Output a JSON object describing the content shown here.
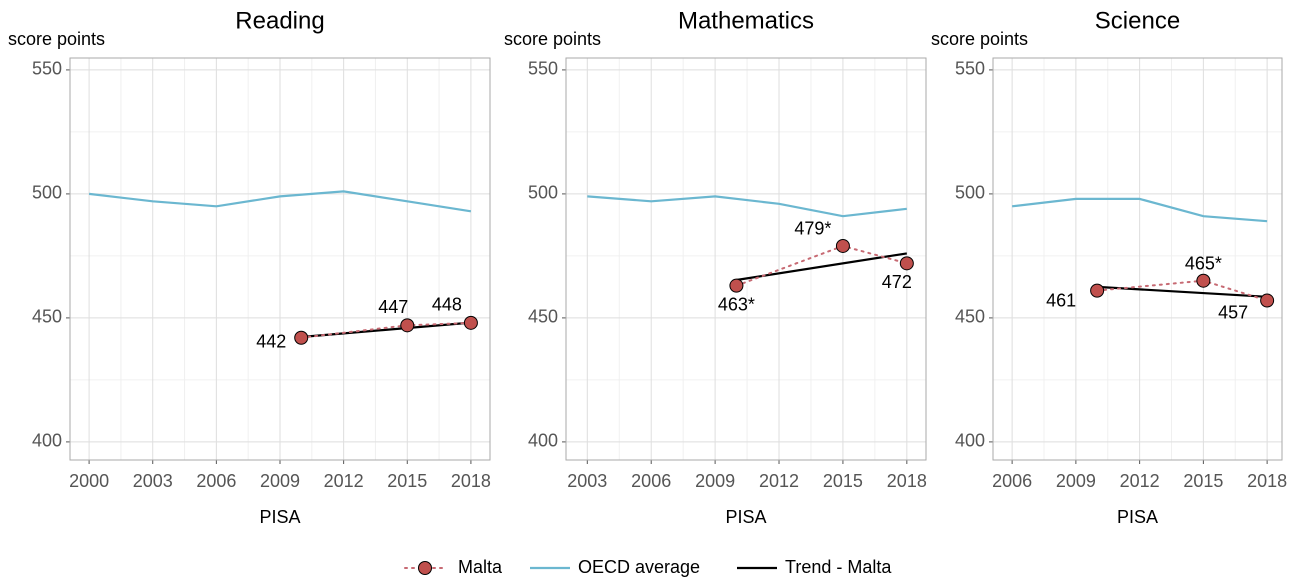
{
  "chart_data": [
    {
      "type": "line",
      "title": "Reading",
      "ylabel": "score points",
      "xlabel": "PISA",
      "xlim": [
        1999.1,
        2018.9
      ],
      "xticks": [
        2000,
        2003,
        2006,
        2009,
        2012,
        2015,
        2018
      ],
      "ylim": [
        392.7,
        554.8
      ],
      "yticks": [
        400,
        450,
        500,
        550
      ],
      "grid": true,
      "series": [
        {
          "name": "Malta",
          "color": "#c0504d",
          "x": [
            2010,
            2015,
            2018
          ],
          "values": [
            442,
            447,
            448
          ]
        },
        {
          "name": "OECD average",
          "color": "#6bb7d0",
          "x": [
            2000,
            2003,
            2006,
            2009,
            2012,
            2015,
            2018
          ],
          "values": [
            500,
            497,
            495,
            499,
            501,
            497,
            493
          ]
        },
        {
          "name": "Trend - Malta",
          "color": "#000000",
          "x": [
            2010,
            2018
          ],
          "values": [
            442.3,
            448.1
          ]
        }
      ]
    },
    {
      "type": "line",
      "title": "Mathematics",
      "ylabel": "score points",
      "xlabel": "PISA",
      "xlim": [
        2002,
        2018.9
      ],
      "xticks": [
        2003,
        2006,
        2009,
        2012,
        2015,
        2018
      ],
      "ylim": [
        392.7,
        554.8
      ],
      "yticks": [
        400,
        450,
        500,
        550
      ],
      "grid": true,
      "series": [
        {
          "name": "Malta",
          "color": "#c0504d",
          "x": [
            2010,
            2015,
            2018
          ],
          "values": [
            463,
            479,
            472
          ],
          "value_labels": [
            "463*",
            "479*",
            "472"
          ]
        },
        {
          "name": "OECD average",
          "color": "#6bb7d0",
          "x": [
            2003,
            2006,
            2009,
            2012,
            2015,
            2018
          ],
          "values": [
            499,
            497,
            499,
            496,
            491,
            494
          ]
        },
        {
          "name": "Trend - Malta",
          "color": "#000000",
          "x": [
            2010,
            2018
          ],
          "values": [
            465.3,
            476
          ]
        }
      ]
    },
    {
      "type": "line",
      "title": "Science",
      "ylabel": "score points",
      "xlabel": "PISA",
      "xlim": [
        2005.1,
        2018.7
      ],
      "xticks": [
        2006,
        2009,
        2012,
        2015,
        2018
      ],
      "ylim": [
        392.7,
        554.8
      ],
      "yticks": [
        400,
        450,
        500,
        550
      ],
      "grid": true,
      "series": [
        {
          "name": "Malta",
          "color": "#c0504d",
          "x": [
            2010,
            2015,
            2018
          ],
          "values": [
            461,
            465,
            457
          ],
          "value_labels": [
            "461",
            "465*",
            "457"
          ]
        },
        {
          "name": "OECD average",
          "color": "#6bb7d0",
          "x": [
            2006,
            2009,
            2012,
            2015,
            2018
          ],
          "values": [
            495,
            498,
            498,
            491,
            489
          ]
        },
        {
          "name": "Trend - Malta",
          "color": "#000000",
          "x": [
            2010,
            2018
          ],
          "values": [
            462.5,
            458.5
          ]
        }
      ]
    }
  ]
}
